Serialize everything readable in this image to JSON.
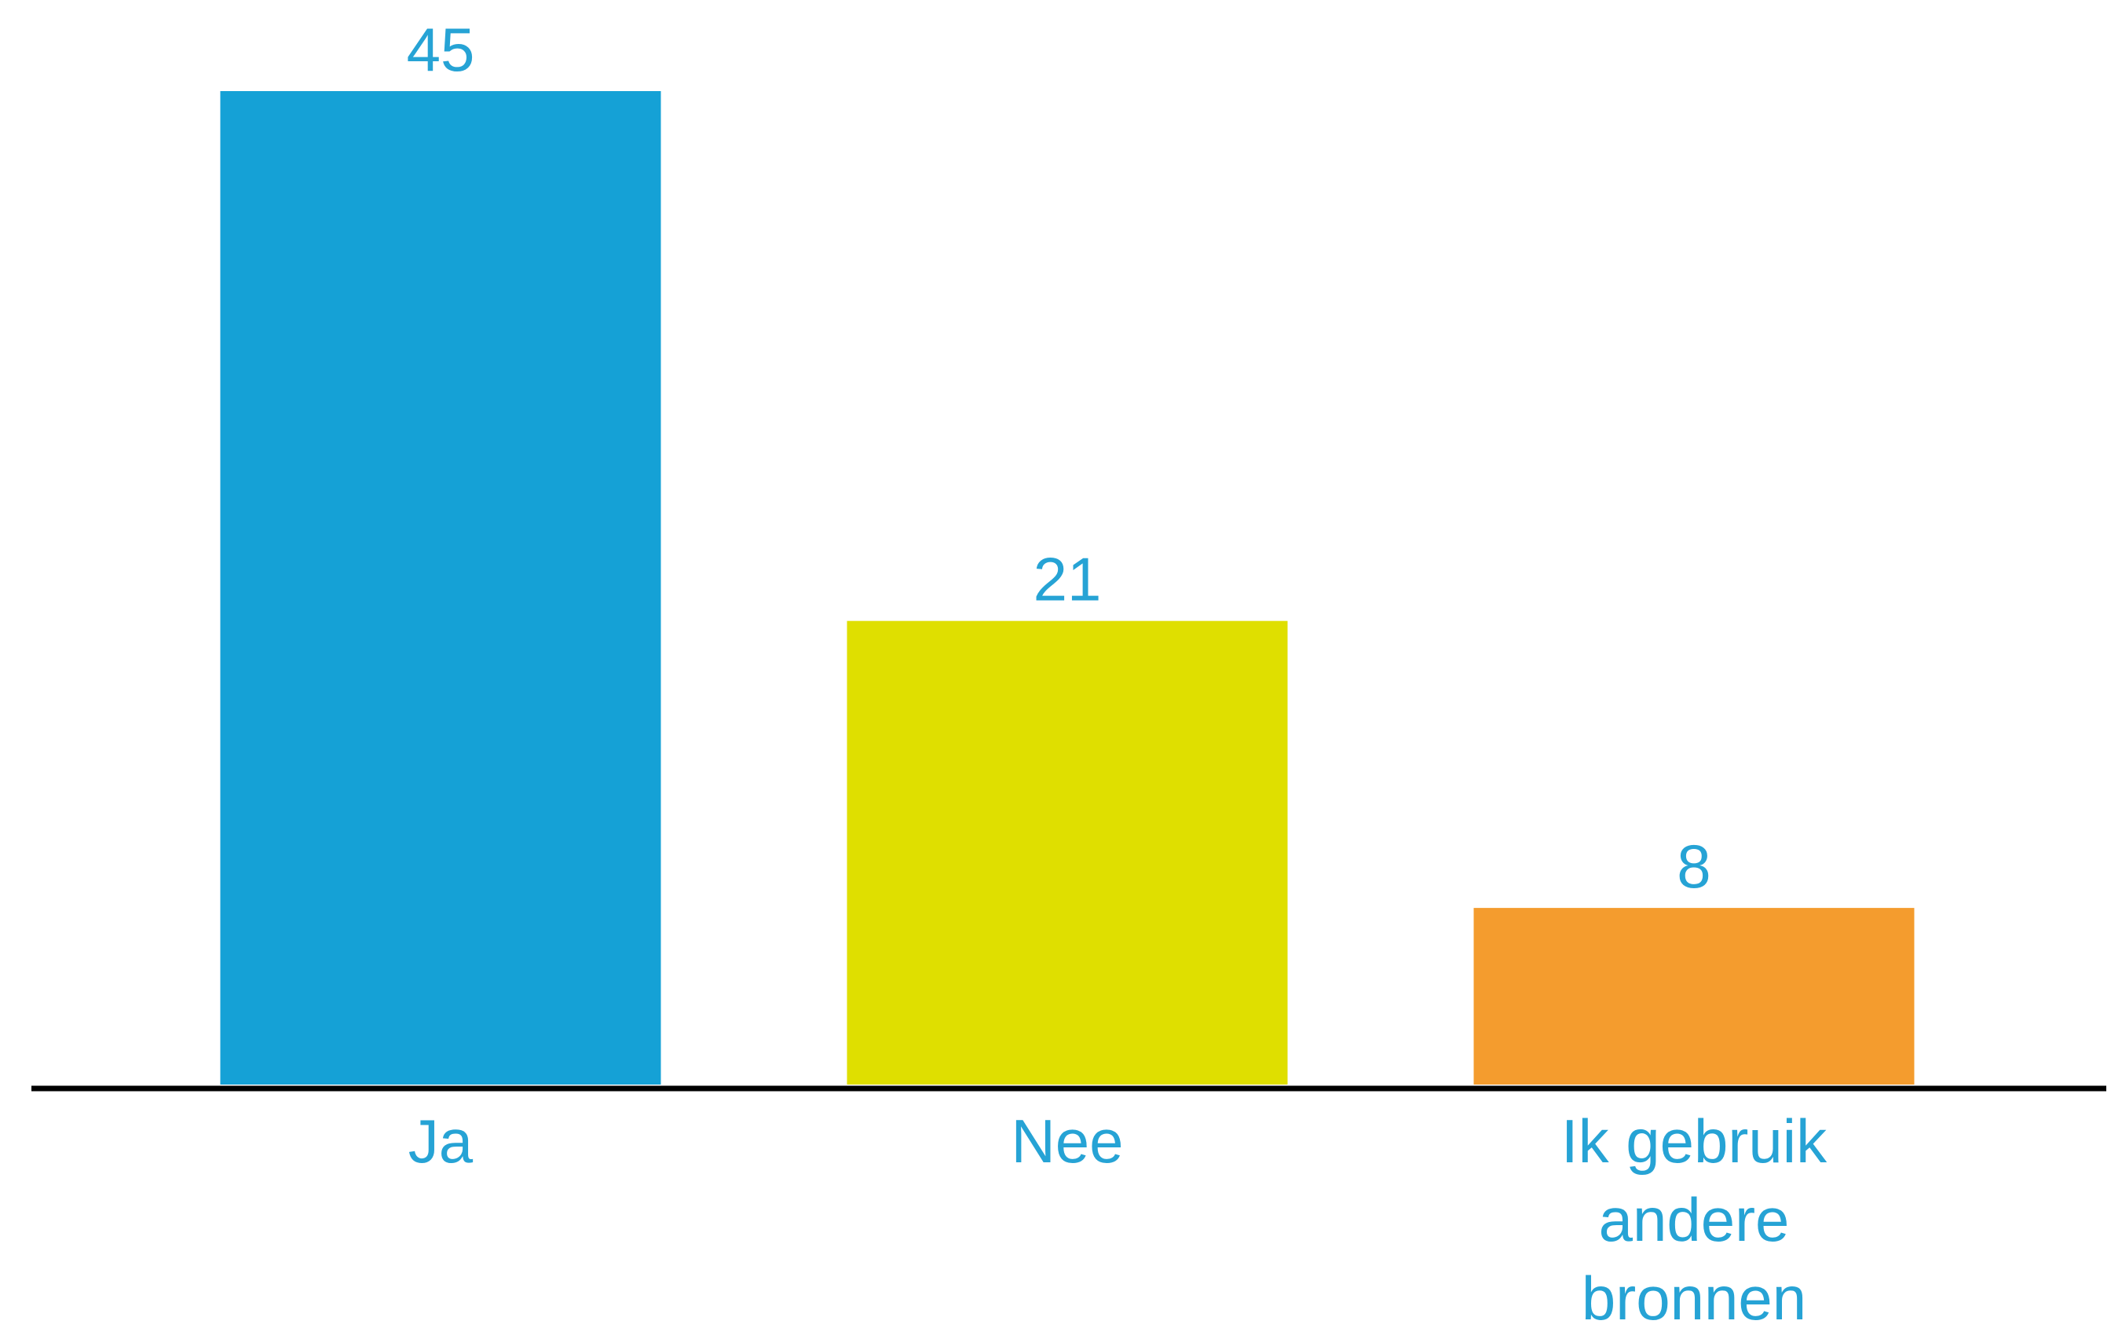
{
  "chart_data": {
    "type": "bar",
    "title": "",
    "xlabel": "",
    "ylabel": "",
    "categories": [
      [
        "Ja"
      ],
      [
        "Nee"
      ],
      [
        "Ik gebruik",
        "andere",
        "bronnen"
      ]
    ],
    "values": [
      45,
      21,
      8
    ],
    "value_labels": [
      "45",
      "21",
      "8"
    ],
    "colors": [
      "#15A1D6",
      "#DFDF00",
      "#F49C2E"
    ],
    "label_color": "#26A3D5",
    "axis_color": "#000000",
    "ylim": [
      0,
      45
    ],
    "grid": false,
    "legend": "none"
  }
}
